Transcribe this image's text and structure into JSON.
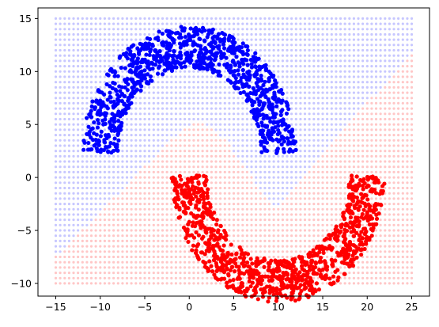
{
  "chart_data": {
    "type": "scatter",
    "title": "",
    "xlabel": "",
    "ylabel": "",
    "xlim": [
      -17.0,
      27.0
    ],
    "ylim": [
      -11.2,
      16.0
    ],
    "xticks": [
      -15,
      -10,
      -5,
      0,
      5,
      10,
      15,
      20,
      25
    ],
    "yticks": [
      -10,
      -5,
      0,
      5,
      10,
      15
    ],
    "grid": false,
    "legend": "none",
    "decision_region": {
      "x_range": [
        -15,
        25
      ],
      "y_range": [
        -10,
        15
      ],
      "step": 0.5,
      "boundary_description": "piecewise boundary: (-15,-7.5) -> (-2,3.6) -> (1,5.4) -> (4,3.6) -> (9.5,-3) -> (25,11.8)",
      "boundary": [
        [
          -15,
          -7.5
        ],
        [
          -2,
          3.6
        ],
        [
          1,
          5.4
        ],
        [
          4,
          3.6
        ],
        [
          9.5,
          -3
        ],
        [
          25,
          11.8
        ]
      ],
      "above_color": "#0000ff",
      "below_color": "#ff0000"
    },
    "series": [
      {
        "color": "#0000ff",
        "shape": "upper moon",
        "center": [
          0,
          0
        ],
        "radius": 10,
        "thickness": 2.0,
        "angle_range": [
          0,
          180
        ],
        "offset": [
          0,
          2.3
        ],
        "count": 1000
      },
      {
        "color": "#ff0000",
        "shape": "lower moon",
        "center": [
          10,
          3
        ],
        "radius": 10,
        "thickness": 2.0,
        "angle_range": [
          180,
          360
        ],
        "offset": [
          0,
          -2.8
        ],
        "count": 1000
      }
    ]
  }
}
